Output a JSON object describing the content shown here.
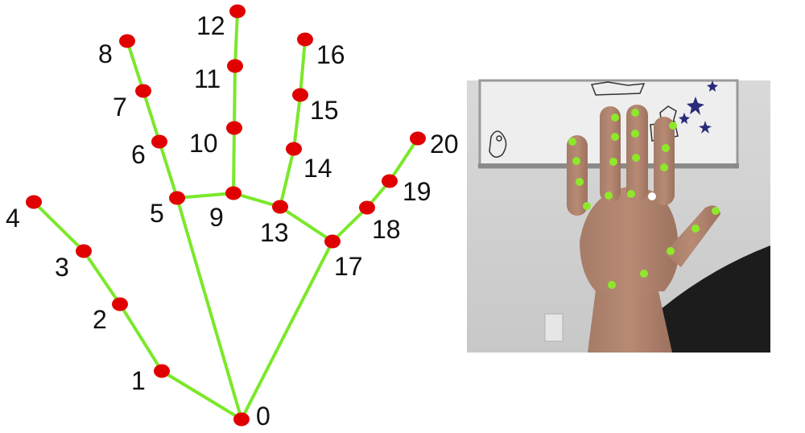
{
  "diagram": {
    "landmarks": [
      {
        "id": 0,
        "label": "0"
      },
      {
        "id": 1,
        "label": "1"
      },
      {
        "id": 2,
        "label": "2"
      },
      {
        "id": 3,
        "label": "3"
      },
      {
        "id": 4,
        "label": "4"
      },
      {
        "id": 5,
        "label": "5"
      },
      {
        "id": 6,
        "label": "6"
      },
      {
        "id": 7,
        "label": "7"
      },
      {
        "id": 8,
        "label": "8"
      },
      {
        "id": 9,
        "label": "9"
      },
      {
        "id": 10,
        "label": "10"
      },
      {
        "id": 11,
        "label": "11"
      },
      {
        "id": 12,
        "label": "12"
      },
      {
        "id": 13,
        "label": "13"
      },
      {
        "id": 14,
        "label": "14"
      },
      {
        "id": 15,
        "label": "15"
      },
      {
        "id": 16,
        "label": "16"
      },
      {
        "id": 17,
        "label": "17"
      },
      {
        "id": 18,
        "label": "18"
      },
      {
        "id": 19,
        "label": "19"
      },
      {
        "id": 20,
        "label": "20"
      }
    ],
    "connections": [
      [
        0,
        1
      ],
      [
        1,
        2
      ],
      [
        2,
        3
      ],
      [
        3,
        4
      ],
      [
        0,
        5
      ],
      [
        5,
        6
      ],
      [
        6,
        7
      ],
      [
        7,
        8
      ],
      [
        5,
        9
      ],
      [
        9,
        10
      ],
      [
        10,
        11
      ],
      [
        11,
        12
      ],
      [
        9,
        13
      ],
      [
        13,
        14
      ],
      [
        14,
        15
      ],
      [
        15,
        16
      ],
      [
        13,
        17
      ],
      [
        0,
        17
      ],
      [
        17,
        18
      ],
      [
        18,
        19
      ],
      [
        19,
        20
      ]
    ],
    "colors": {
      "joint": "#e00000",
      "bone": "#7be82a",
      "label": "#111111"
    }
  },
  "photo": {
    "dot_color": "#8ee82a",
    "highlight_dot_color": "#ffffff"
  }
}
